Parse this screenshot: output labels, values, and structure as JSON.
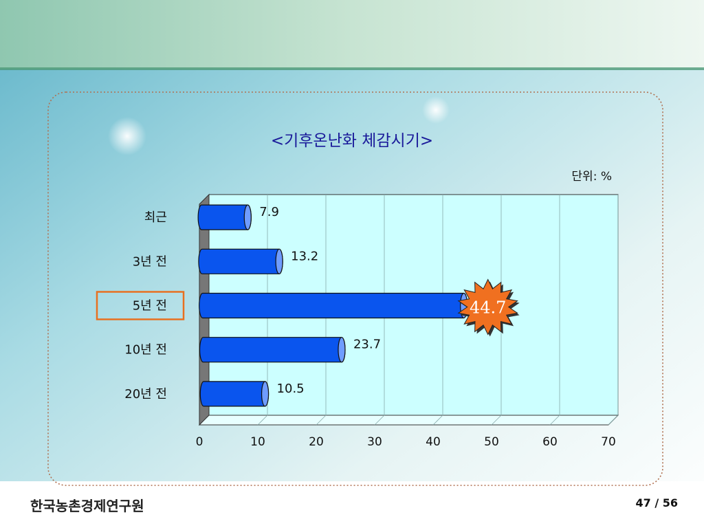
{
  "slide": {
    "organization": "한국농촌경제연구원",
    "page_current": "47",
    "page_separator": "/",
    "page_total": "56",
    "page_label": "47 / 56"
  },
  "colors": {
    "bar_fill": "#0a55ee",
    "bar_cap": "#6f9cff",
    "plot_bg": "#ccffff",
    "title": "#1a1a9a",
    "highlight_box": "#e87020",
    "starburst": "#f07020",
    "starburst_text": "#ffffff"
  },
  "chart_data": {
    "type": "bar",
    "orientation": "horizontal",
    "title": "<기후온난화 체감시기>",
    "unit_label": "단위: %",
    "categories": [
      "최근",
      "3년 전",
      "5년 전",
      "10년 전",
      "20년 전"
    ],
    "values": [
      7.9,
      13.2,
      44.7,
      23.7,
      10.5
    ],
    "value_labels": [
      "7.9",
      "13.2",
      "44.7",
      "23.7",
      "10.5"
    ],
    "highlighted_category": "5년 전",
    "xlim": [
      0,
      70
    ],
    "xticks": [
      "0",
      "10",
      "20",
      "30",
      "40",
      "50",
      "60",
      "70"
    ],
    "tick_values": [
      0,
      10,
      20,
      30,
      40,
      50,
      60,
      70
    ],
    "grid": true,
    "style": "3d-cylinder"
  }
}
